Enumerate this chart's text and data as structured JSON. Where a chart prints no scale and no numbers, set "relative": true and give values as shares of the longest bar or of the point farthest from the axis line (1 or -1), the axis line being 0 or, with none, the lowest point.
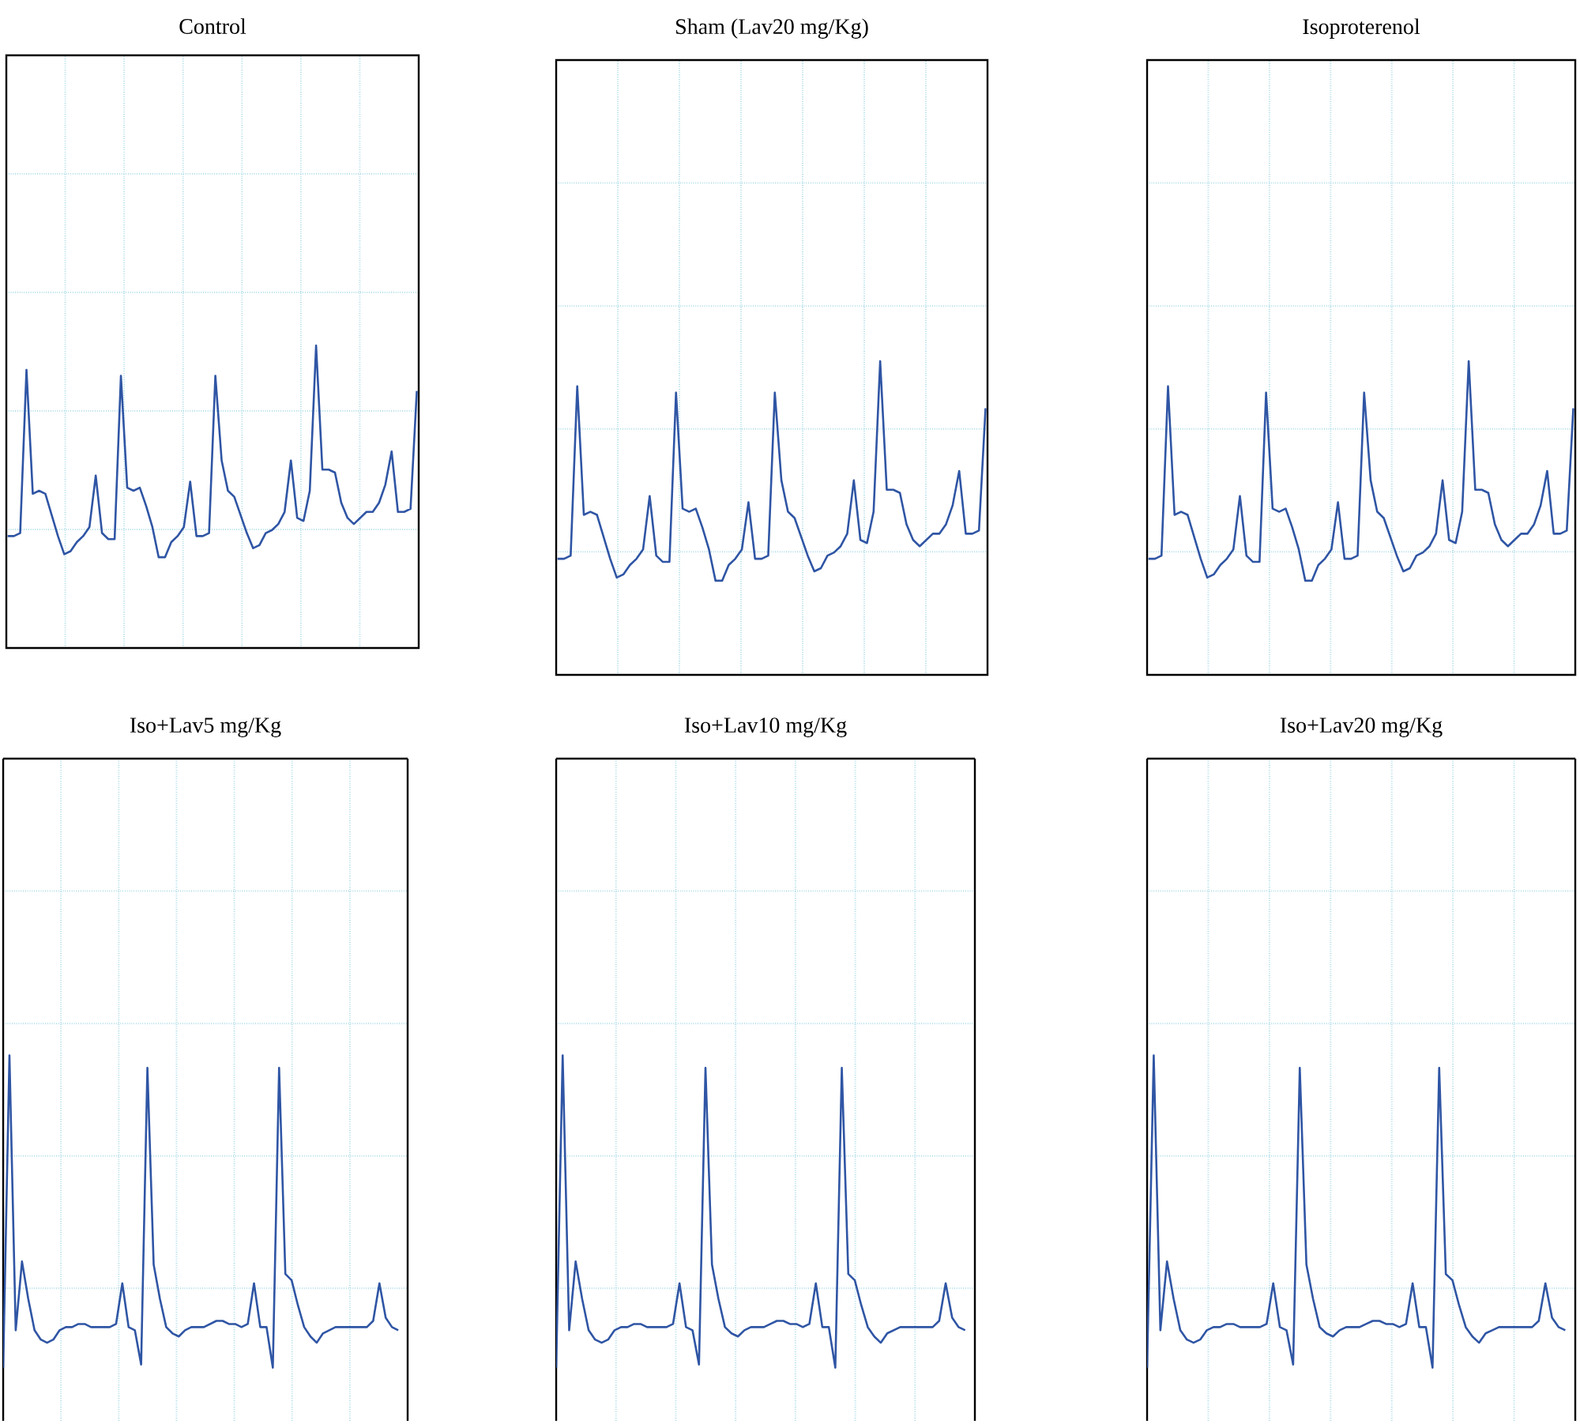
{
  "chart_data": [
    {
      "type": "line",
      "title": "Control",
      "color": "#2f55a4",
      "relative": true,
      "grid": true,
      "tick_labels": false,
      "categories": [
        null,
        null,
        null,
        null,
        null,
        null,
        null,
        null,
        null,
        null,
        null,
        null,
        null,
        null,
        null,
        null,
        null,
        null,
        null,
        null,
        null,
        null,
        null,
        null,
        null,
        null,
        null,
        null,
        null,
        null,
        null,
        null,
        null,
        null,
        null,
        null,
        null,
        null,
        null,
        null,
        null,
        null,
        null,
        null,
        null,
        null,
        null,
        null,
        null,
        null,
        null,
        null,
        null,
        null,
        null,
        null,
        null,
        null,
        null,
        null,
        null,
        null,
        null,
        null,
        null,
        null
      ],
      "values": [
        0.37,
        0.37,
        0.38,
        0.92,
        0.51,
        0.52,
        0.51,
        0.44,
        0.37,
        0.31,
        0.32,
        0.35,
        0.37,
        0.4,
        0.57,
        0.38,
        0.36,
        0.36,
        0.9,
        0.53,
        0.52,
        0.53,
        0.47,
        0.4,
        0.3,
        0.3,
        0.35,
        0.37,
        0.4,
        0.55,
        0.37,
        0.37,
        0.38,
        0.9,
        0.62,
        0.52,
        0.5,
        0.44,
        0.38,
        0.33,
        0.34,
        0.38,
        0.39,
        0.41,
        0.45,
        0.62,
        0.43,
        0.42,
        0.52,
        1,
        0.59,
        0.59,
        0.58,
        0.48,
        0.43,
        0.41,
        0.43,
        0.45,
        0.45,
        0.48,
        0.54,
        0.65,
        0.45,
        0.45,
        0.46,
        0.85
      ]
    },
    {
      "type": "line",
      "title": "Sham (Lav20 mg/Kg)",
      "color": "#2f55a4",
      "relative": true,
      "grid": true,
      "tick_labels": false,
      "categories": [
        null,
        null,
        null,
        null,
        null,
        null,
        null,
        null,
        null,
        null,
        null,
        null,
        null,
        null,
        null,
        null,
        null,
        null,
        null,
        null,
        null,
        null,
        null,
        null,
        null,
        null,
        null,
        null,
        null,
        null,
        null,
        null,
        null,
        null,
        null,
        null,
        null,
        null,
        null,
        null,
        null,
        null,
        null,
        null,
        null,
        null,
        null,
        null,
        null,
        null,
        null,
        null,
        null,
        null,
        null,
        null,
        null,
        null,
        null,
        null,
        null,
        null,
        null,
        null,
        null,
        null
      ],
      "values": [
        0.37,
        0.37,
        0.38,
        0.92,
        0.51,
        0.52,
        0.51,
        0.44,
        0.37,
        0.31,
        0.32,
        0.35,
        0.37,
        0.4,
        0.57,
        0.38,
        0.36,
        0.36,
        0.9,
        0.53,
        0.52,
        0.53,
        0.47,
        0.4,
        0.3,
        0.3,
        0.35,
        0.37,
        0.4,
        0.55,
        0.37,
        0.37,
        0.38,
        0.9,
        0.62,
        0.52,
        0.5,
        0.44,
        0.38,
        0.33,
        0.34,
        0.38,
        0.39,
        0.41,
        0.45,
        0.62,
        0.43,
        0.42,
        0.52,
        1,
        0.59,
        0.59,
        0.58,
        0.48,
        0.43,
        0.41,
        0.43,
        0.45,
        0.45,
        0.48,
        0.54,
        0.65,
        0.45,
        0.45,
        0.46,
        0.85
      ]
    },
    {
      "type": "line",
      "title": "Isoproterenol",
      "color": "#2f55a4",
      "relative": true,
      "grid": true,
      "tick_labels": false,
      "categories": [
        null,
        null,
        null,
        null,
        null,
        null,
        null,
        null,
        null,
        null,
        null,
        null,
        null,
        null,
        null,
        null,
        null,
        null,
        null,
        null,
        null,
        null,
        null,
        null,
        null,
        null,
        null,
        null,
        null,
        null,
        null,
        null,
        null,
        null,
        null,
        null,
        null,
        null,
        null,
        null,
        null,
        null,
        null,
        null,
        null,
        null,
        null,
        null,
        null,
        null,
        null,
        null,
        null,
        null,
        null,
        null,
        null,
        null,
        null,
        null,
        null,
        null,
        null,
        null,
        null,
        null
      ],
      "values": [
        0.37,
        0.37,
        0.38,
        0.92,
        0.51,
        0.52,
        0.51,
        0.44,
        0.37,
        0.31,
        0.32,
        0.35,
        0.37,
        0.4,
        0.57,
        0.38,
        0.36,
        0.36,
        0.9,
        0.53,
        0.52,
        0.53,
        0.47,
        0.4,
        0.3,
        0.3,
        0.35,
        0.37,
        0.4,
        0.55,
        0.37,
        0.37,
        0.38,
        0.9,
        0.62,
        0.52,
        0.5,
        0.44,
        0.38,
        0.33,
        0.34,
        0.38,
        0.39,
        0.41,
        0.45,
        0.62,
        0.43,
        0.42,
        0.52,
        1,
        0.59,
        0.59,
        0.58,
        0.48,
        0.43,
        0.41,
        0.43,
        0.45,
        0.45,
        0.48,
        0.54,
        0.65,
        0.45,
        0.45,
        0.46,
        0.85
      ]
    },
    {
      "type": "line",
      "title": "Iso+Lav5 mg/Kg",
      "color": "#2f55a4",
      "relative": true,
      "grid": true,
      "tick_labels": false,
      "categories": [
        null,
        null,
        null,
        null,
        null,
        null,
        null,
        null,
        null,
        null,
        null,
        null,
        null,
        null,
        null,
        null,
        null,
        null,
        null,
        null,
        null,
        null,
        null,
        null,
        null,
        null,
        null,
        null,
        null,
        null,
        null,
        null,
        null,
        null,
        null,
        null,
        null,
        null,
        null,
        null,
        null,
        null,
        null,
        null,
        null,
        null,
        null,
        null,
        null,
        null,
        null,
        null,
        null,
        null,
        null,
        null,
        null,
        null,
        null,
        null,
        null,
        null,
        null,
        null
      ],
      "values": [
        0,
        1,
        0.12,
        0.34,
        0.22,
        0.12,
        0.09,
        0.08,
        0.09,
        0.12,
        0.13,
        0.13,
        0.14,
        0.14,
        0.13,
        0.13,
        0.13,
        0.13,
        0.14,
        0.27,
        0.13,
        0.12,
        0.01,
        0.96,
        0.33,
        0.22,
        0.13,
        0.11,
        0.1,
        0.12,
        0.13,
        0.13,
        0.13,
        0.14,
        0.15,
        0.15,
        0.14,
        0.14,
        0.13,
        0.14,
        0.27,
        0.13,
        0.13,
        0,
        0.96,
        0.3,
        0.28,
        0.2,
        0.13,
        0.1,
        0.08,
        0.11,
        0.12,
        0.13,
        0.13,
        0.13,
        0.13,
        0.13,
        0.13,
        0.15,
        0.27,
        0.16,
        0.13,
        0.12
      ]
    },
    {
      "type": "line",
      "title": "Iso+Lav10 mg/Kg",
      "color": "#2f55a4",
      "relative": true,
      "grid": true,
      "tick_labels": false,
      "categories": [
        null,
        null,
        null,
        null,
        null,
        null,
        null,
        null,
        null,
        null,
        null,
        null,
        null,
        null,
        null,
        null,
        null,
        null,
        null,
        null,
        null,
        null,
        null,
        null,
        null,
        null,
        null,
        null,
        null,
        null,
        null,
        null,
        null,
        null,
        null,
        null,
        null,
        null,
        null,
        null,
        null,
        null,
        null,
        null,
        null,
        null,
        null,
        null,
        null,
        null,
        null,
        null,
        null,
        null,
        null,
        null,
        null,
        null,
        null,
        null,
        null,
        null,
        null,
        null
      ],
      "values": [
        0,
        1,
        0.12,
        0.34,
        0.22,
        0.12,
        0.09,
        0.08,
        0.09,
        0.12,
        0.13,
        0.13,
        0.14,
        0.14,
        0.13,
        0.13,
        0.13,
        0.13,
        0.14,
        0.27,
        0.13,
        0.12,
        0.01,
        0.96,
        0.33,
        0.22,
        0.13,
        0.11,
        0.1,
        0.12,
        0.13,
        0.13,
        0.13,
        0.14,
        0.15,
        0.15,
        0.14,
        0.14,
        0.13,
        0.14,
        0.27,
        0.13,
        0.13,
        0,
        0.96,
        0.3,
        0.28,
        0.2,
        0.13,
        0.1,
        0.08,
        0.11,
        0.12,
        0.13,
        0.13,
        0.13,
        0.13,
        0.13,
        0.13,
        0.15,
        0.27,
        0.16,
        0.13,
        0.12
      ]
    },
    {
      "type": "line",
      "title": "Iso+Lav20 mg/Kg",
      "color": "#2f55a4",
      "relative": true,
      "grid": true,
      "tick_labels": false,
      "categories": [
        null,
        null,
        null,
        null,
        null,
        null,
        null,
        null,
        null,
        null,
        null,
        null,
        null,
        null,
        null,
        null,
        null,
        null,
        null,
        null,
        null,
        null,
        null,
        null,
        null,
        null,
        null,
        null,
        null,
        null,
        null,
        null,
        null,
        null,
        null,
        null,
        null,
        null,
        null,
        null,
        null,
        null,
        null,
        null,
        null,
        null,
        null,
        null,
        null,
        null,
        null,
        null,
        null,
        null,
        null,
        null,
        null,
        null,
        null,
        null,
        null,
        null,
        null,
        null
      ],
      "values": [
        0,
        1,
        0.12,
        0.34,
        0.22,
        0.12,
        0.09,
        0.08,
        0.09,
        0.12,
        0.13,
        0.13,
        0.14,
        0.14,
        0.13,
        0.13,
        0.13,
        0.13,
        0.14,
        0.27,
        0.13,
        0.12,
        0.01,
        0.96,
        0.33,
        0.22,
        0.13,
        0.11,
        0.1,
        0.12,
        0.13,
        0.13,
        0.13,
        0.14,
        0.15,
        0.15,
        0.14,
        0.14,
        0.13,
        0.14,
        0.27,
        0.13,
        0.13,
        0,
        0.96,
        0.3,
        0.28,
        0.2,
        0.13,
        0.1,
        0.08,
        0.11,
        0.12,
        0.13,
        0.13,
        0.13,
        0.13,
        0.13,
        0.13,
        0.15,
        0.27,
        0.16,
        0.13,
        0.12
      ]
    }
  ]
}
